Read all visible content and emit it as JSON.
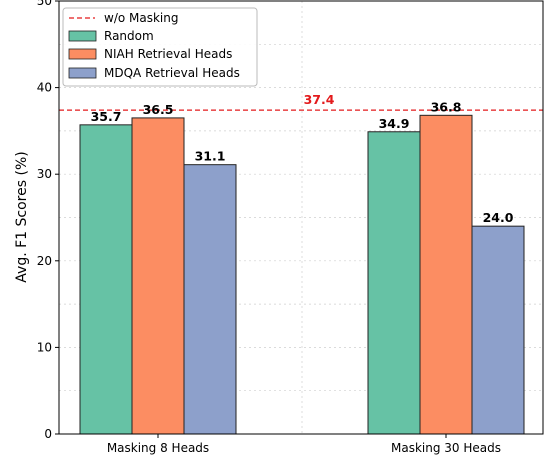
{
  "chart_data": {
    "type": "bar",
    "categories": [
      "Masking 8 Heads",
      "Masking 30 Heads"
    ],
    "series": [
      {
        "name": "Random",
        "values": [
          35.7,
          34.9
        ],
        "color": "#66c2a5"
      },
      {
        "name": "NIAH Retrieval Heads",
        "values": [
          36.5,
          36.8
        ],
        "color": "#fc8d62"
      },
      {
        "name": "MDQA Retrieval Heads",
        "values": [
          31.1,
          24.0
        ],
        "color": "#8da0cb"
      }
    ],
    "value_labels": [
      [
        "35.7",
        "34.9"
      ],
      [
        "36.5",
        "36.8"
      ],
      [
        "31.1",
        "24.0"
      ]
    ],
    "reference_line": {
      "name": "w/o Masking",
      "value": 37.4,
      "label": "37.4",
      "color": "#e31a1c"
    },
    "ylabel": "Avg. F1 Scores (%)",
    "xlabel": "",
    "ylim": [
      0,
      50
    ],
    "yticks": [
      0,
      10,
      20,
      30,
      40,
      50
    ],
    "grid": true,
    "legend_position": "top-left"
  }
}
